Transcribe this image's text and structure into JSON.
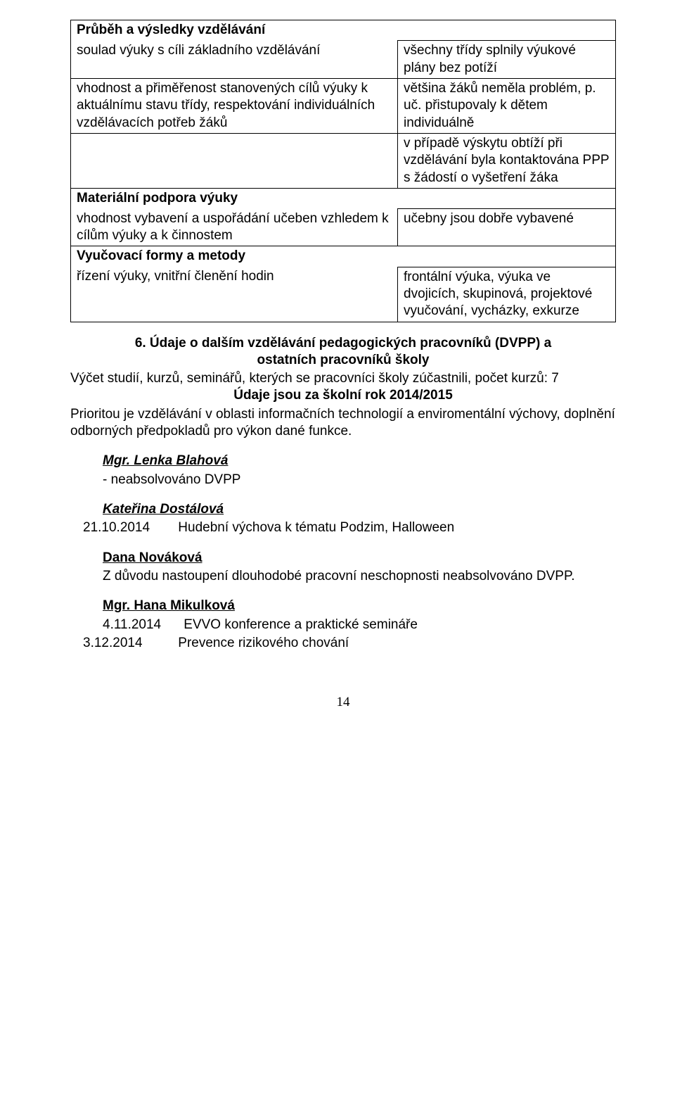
{
  "table": {
    "section1_header": "Průběh a výsledky vzdělávání",
    "row1": {
      "left": "soulad výuky s cíli základního vzdělávání",
      "right": "všechny třídy splnily výukové plány bez potíží"
    },
    "row2": {
      "left": "vhodnost a přiměřenost stanovených cílů výuky k aktuálnímu stavu třídy, respektování individuálních vzdělávacích potřeb žáků",
      "right": "většina žáků neměla problém, p. uč. přistupovaly k dětem individuálně"
    },
    "row3": {
      "left": "",
      "right": "v případě výskytu obtíží při vzdělávání byla kontaktována PPP s žádostí o vyšetření žáka"
    },
    "section2_header": "Materiální podpora výuky",
    "row4": {
      "left": "vhodnost vybavení a uspořádání učeben vzhledem k cílům výuky a k činnostem",
      "right": "učebny jsou dobře vybavené"
    },
    "section3_header": "Vyučovací formy a metody",
    "row5": {
      "left": "řízení výuky, vnitřní členění hodin",
      "right": "frontální výuka, výuka ve dvojicích, skupinová, projektové vyučování, vycházky, exkurze"
    }
  },
  "section6": {
    "title_line1": "6. Údaje o dalším vzdělávání pedagogických pracovníků (DVPP) a",
    "title_line2": "ostatních pracovníků školy",
    "para1": "Výčet studií, kurzů, seminářů, kterých se pracovníci školy zúčastnili, počet kurzů: 7",
    "bold_line": "Údaje jsou za školní rok 2014/2015",
    "para2": "Prioritou je vzdělávání v oblasti informačních technologií a enviromentální výchovy, doplnění odborných předpokladů pro výkon dané funkce."
  },
  "people": {
    "p1_name": "Mgr. Lenka Blahová",
    "p1_note": "- neabsolvováno DVPP",
    "p2_name": "Kateřina Dostálová",
    "p2_date": "21.10.2014",
    "p2_text": "Hudební výchova k tématu Podzim, Halloween",
    "p3_name": "Dana Nováková",
    "p3_text": "Z důvodu nastoupení dlouhodobé pracovní neschopnosti neabsolvováno DVPP.",
    "p4_name": "Mgr. Hana Mikulková",
    "p4_date1": "4.11.2014",
    "p4_text1": "EVVO konference a praktické semináře",
    "p4_date2": "3.12.2014",
    "p4_text2": "Prevence rizikového chování"
  },
  "footer": "14",
  "colors": {
    "text": "#000000",
    "background": "#ffffff",
    "border": "#000000"
  },
  "fonts": {
    "body_family": "Comic Sans MS",
    "body_size_pt": 14,
    "footer_family": "Times New Roman"
  }
}
